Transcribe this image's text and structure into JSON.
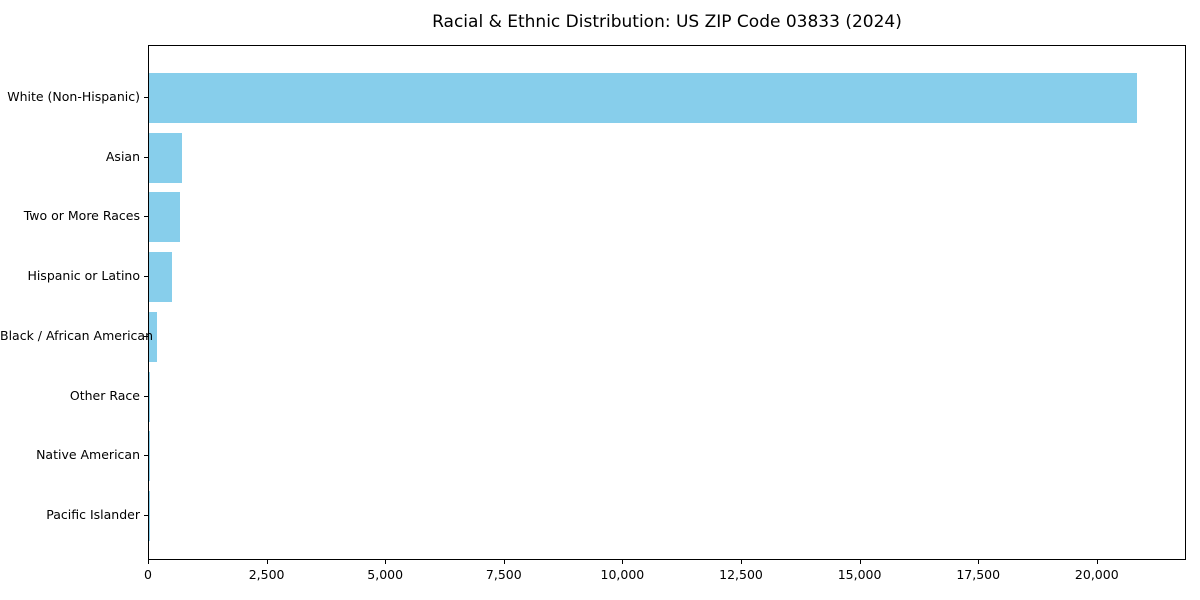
{
  "chart_data": {
    "type": "bar",
    "orientation": "horizontal",
    "title": "Racial & Ethnic Distribution: US ZIP Code 03833 (2024)",
    "categories": [
      "White (Non-Hispanic)",
      "Asian",
      "Two or More Races",
      "Hispanic or Latino",
      "Black / African American",
      "Other Race",
      "Native American",
      "Pacific Islander"
    ],
    "values": [
      20830,
      700,
      660,
      490,
      160,
      30,
      10,
      5
    ],
    "bar_color": "#87CEEB",
    "xlabel": "",
    "ylabel": "",
    "xlim": [
      0,
      21880
    ],
    "xticks": {
      "values": [
        0,
        2500,
        5000,
        7500,
        10000,
        12500,
        15000,
        17500,
        20000
      ],
      "labels": [
        "0",
        "2,500",
        "5,000",
        "7,500",
        "10,000",
        "12,500",
        "15,000",
        "17,500",
        "20,000"
      ]
    },
    "grid": false,
    "legend": "none",
    "sort_order": "descending",
    "background_color": "#ffffff",
    "text_color": "#000000"
  }
}
